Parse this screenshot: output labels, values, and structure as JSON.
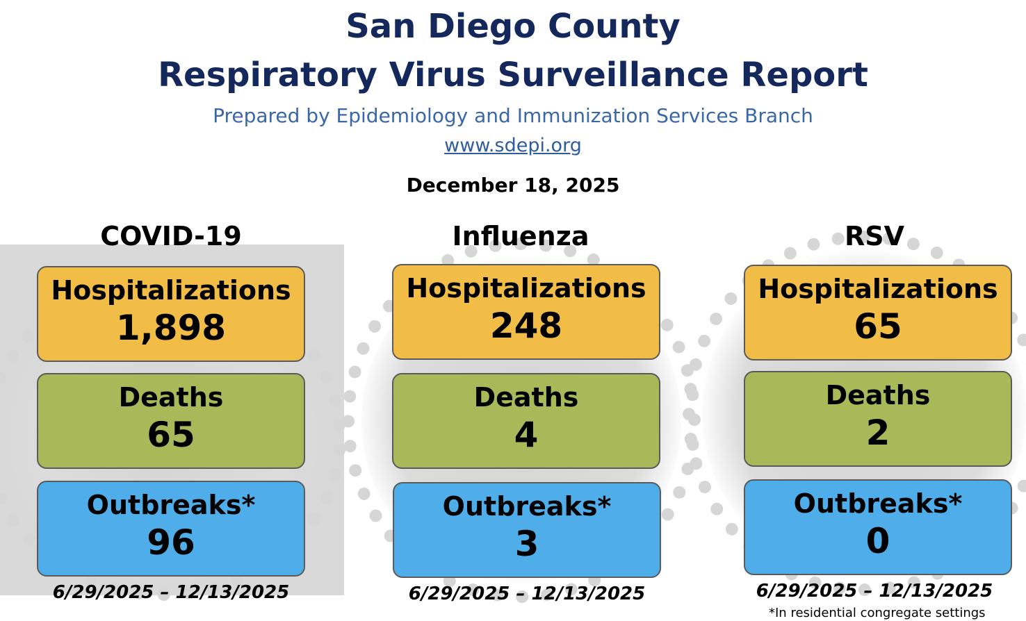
{
  "header": {
    "title_line1": "San Diego County",
    "title_line2": "Respiratory Virus Surveillance Report",
    "subtitle": "Prepared by Epidemiology and Immunization Services Branch",
    "website": "www.sdepi.org",
    "report_date": "December 18, 2025"
  },
  "columns": [
    {
      "name": "COVID-19",
      "hospitalizations_label": "Hospitalizations",
      "hospitalizations": "1,898",
      "deaths_label": "Deaths",
      "deaths": "65",
      "outbreaks_label": "Outbreaks*",
      "outbreaks": "96",
      "date_range": "6/29/2025 – 12/13/2025"
    },
    {
      "name": "Influenza",
      "hospitalizations_label": "Hospitalizations",
      "hospitalizations": "248",
      "deaths_label": "Deaths",
      "deaths": "4",
      "outbreaks_label": "Outbreaks*",
      "outbreaks": "3",
      "date_range": "6/29/2025 – 12/13/2025"
    },
    {
      "name": "RSV",
      "hospitalizations_label": "Hospitalizations",
      "hospitalizations": "65",
      "deaths_label": "Deaths",
      "deaths": "2",
      "outbreaks_label": "Outbreaks*",
      "outbreaks": "0",
      "date_range": "6/29/2025 – 12/13/2025"
    }
  ],
  "footnote": "*In residential congregate settings",
  "colors": {
    "title": "#14285c",
    "subtitle": "#3a67a8",
    "hospitalizations_card": "#f2bd47",
    "deaths_card": "#a9b959",
    "outbreaks_card": "#4faeea"
  }
}
